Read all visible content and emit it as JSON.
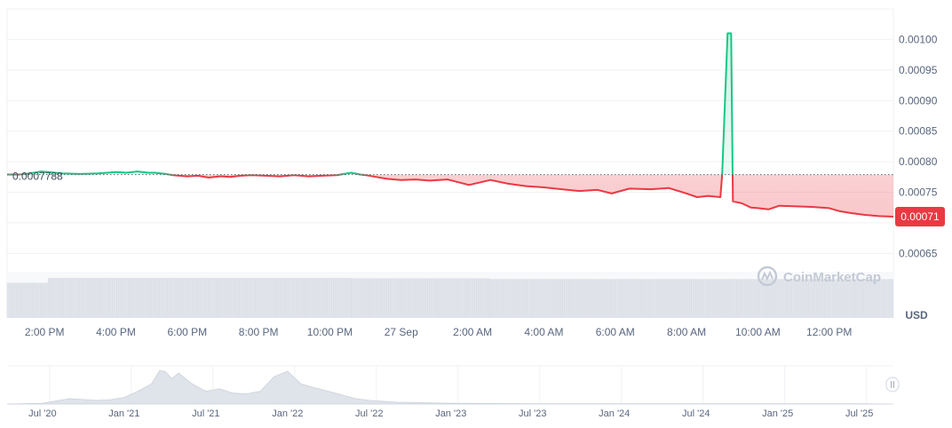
{
  "chart_data": {
    "type": "line",
    "currency_label": "USD",
    "watermark": "CoinMarketCap",
    "reference_value": 0.0007788,
    "reference_label": "0.0007788",
    "current_value": 0.00071,
    "current_label": "0.00071",
    "ylim": [
      0.00062,
      0.00105
    ],
    "y_ticks": [
      "0.00065",
      "0.00070",
      "0.00075",
      "0.00080",
      "0.00085",
      "0.00090",
      "0.00095",
      "0.00100"
    ],
    "y_tick_values": [
      0.00065,
      0.0007,
      0.00075,
      0.0008,
      0.00085,
      0.0009,
      0.00095,
      0.001
    ],
    "x_ticks": [
      "2:00 PM",
      "4:00 PM",
      "6:00 PM",
      "8:00 PM",
      "10:00 PM",
      "27 Sep",
      "2:00 AM",
      "4:00 AM",
      "6:00 AM",
      "8:00 AM",
      "10:00 AM",
      "12:00 PM"
    ],
    "x_hours": [
      14,
      16,
      18,
      20,
      22,
      24,
      26,
      28,
      30,
      32,
      34,
      36
    ],
    "xlim_hours": [
      12.95,
      37.8
    ],
    "series": [
      {
        "x": [
          12.95,
          13.3,
          13.6,
          13.9,
          14.1,
          14.5,
          15.0,
          15.5,
          16.0,
          16.3,
          16.6,
          16.9,
          17.1,
          17.4,
          17.6,
          18.0,
          18.3,
          18.6,
          18.9,
          19.0,
          19.2,
          19.5,
          19.8,
          20.2,
          20.6,
          21.0,
          21.4,
          21.8,
          22.2,
          22.6,
          22.85,
          23.0,
          23.3,
          23.6,
          24.0,
          24.4,
          24.8,
          25.3,
          25.9,
          26.5,
          27.0,
          27.5,
          28.0,
          28.5,
          29.0,
          29.5,
          29.9,
          30.4,
          31.0,
          31.5,
          32.0,
          32.3,
          32.6,
          32.95,
          33.0,
          33.15,
          33.25,
          33.3,
          33.55,
          33.8,
          34.0,
          34.3,
          34.6,
          35.0,
          35.5,
          36.0,
          36.3,
          36.6,
          37.0,
          37.4,
          37.8
        ],
        "y": [
          0.000779,
          0.000779,
          0.000781,
          0.000784,
          0.000783,
          0.000781,
          0.00078,
          0.000781,
          0.000783,
          0.000782,
          0.000784,
          0.000782,
          0.000782,
          0.00078,
          0.000778,
          0.000776,
          0.000777,
          0.000774,
          0.000776,
          0.000776,
          0.000775,
          0.000777,
          0.000778,
          0.000777,
          0.000776,
          0.000778,
          0.000776,
          0.000777,
          0.000778,
          0.000782,
          0.000779,
          0.000778,
          0.000775,
          0.000772,
          0.00077,
          0.000771,
          0.000769,
          0.000771,
          0.000762,
          0.00077,
          0.000764,
          0.00076,
          0.000758,
          0.000755,
          0.000752,
          0.000754,
          0.000748,
          0.000756,
          0.000755,
          0.000757,
          0.000748,
          0.000742,
          0.000744,
          0.000742,
          0.000779,
          0.00101,
          0.00101,
          0.000735,
          0.000732,
          0.000725,
          0.000724,
          0.000722,
          0.000728,
          0.000727,
          0.000726,
          0.000724,
          0.000719,
          0.000716,
          0.000713,
          0.000711,
          0.00071
        ]
      }
    ],
    "volume_ticks": [
      {
        "from": 12.95,
        "to": 14.1,
        "level": 0.86
      },
      {
        "from": 14.1,
        "to": 22.6,
        "level": 0.98
      },
      {
        "from": 22.6,
        "to": 26.5,
        "level": 0.97
      },
      {
        "from": 26.5,
        "to": 37.8,
        "level": 0.95
      }
    ],
    "navigator": {
      "x_ticks": [
        "Jul '20",
        "Jan '21",
        "Jul '21",
        "Jan '22",
        "Jul '22",
        "Jan '23",
        "Jul '23",
        "Jan '24",
        "Jul '24",
        "Jan '25",
        "Jul '25"
      ],
      "x_months": [
        0,
        6,
        12,
        18,
        24,
        30,
        36,
        42,
        48,
        54,
        60
      ],
      "xlim_months": [
        -2.6,
        62.5
      ],
      "months": [
        -2.6,
        0,
        2,
        4,
        5,
        6,
        7,
        8,
        8.6,
        9,
        9.5,
        10,
        11,
        12,
        13,
        14,
        15,
        16,
        17,
        18,
        19,
        20,
        21,
        22,
        23,
        24,
        26,
        30,
        36,
        42,
        48,
        54,
        60,
        62.5
      ],
      "level": [
        0.0,
        0.02,
        0.15,
        0.1,
        0.12,
        0.18,
        0.35,
        0.55,
        0.92,
        0.9,
        0.7,
        0.85,
        0.55,
        0.35,
        0.42,
        0.3,
        0.28,
        0.35,
        0.75,
        0.9,
        0.55,
        0.45,
        0.35,
        0.25,
        0.15,
        0.1,
        0.05,
        0.02,
        0.01,
        0.01,
        0.01,
        0.01,
        0.01,
        0.0
      ]
    }
  }
}
